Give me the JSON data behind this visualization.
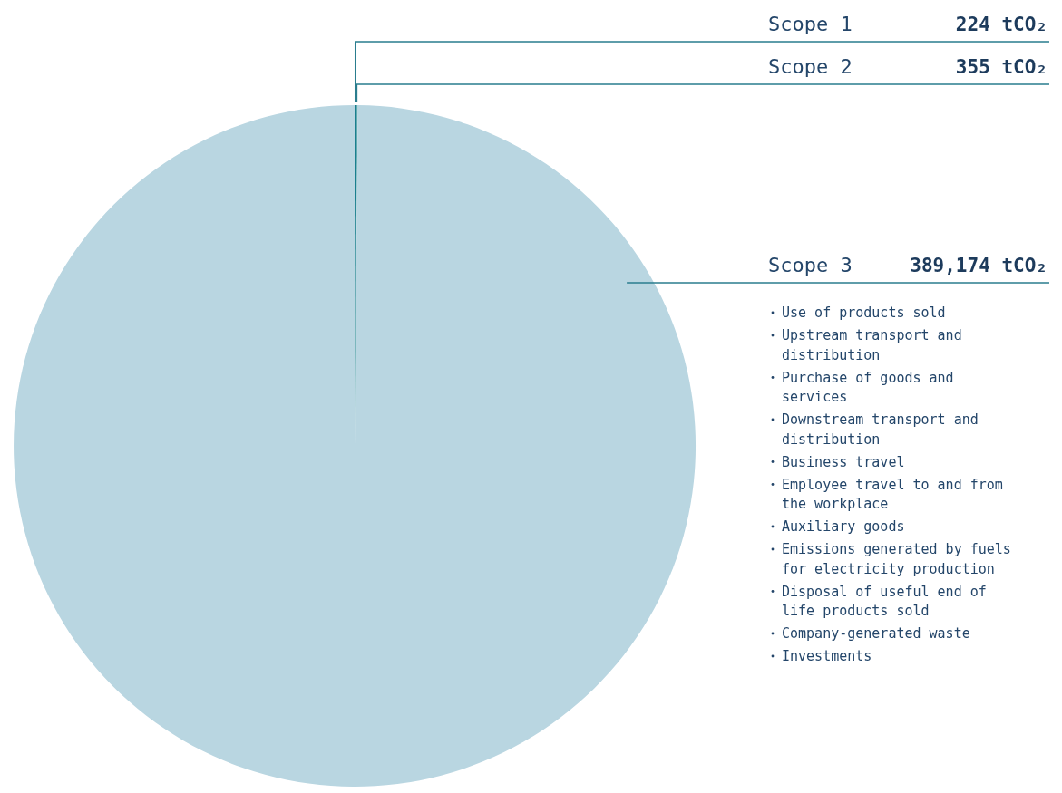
{
  "chart_data": {
    "type": "pie",
    "categories": [
      "Scope 1",
      "Scope 2",
      "Scope 3"
    ],
    "values": [
      224,
      355,
      389174
    ],
    "colors": [
      "#1a7f8e",
      "#62aab0",
      "#b9d6e1"
    ],
    "value_labels": [
      "224 tCO₂",
      "355 tCO₂",
      "389,174 tCO₂"
    ],
    "annotations": [
      "Use of products sold",
      "Upstream transport and distribution",
      "Purchase of goods and services",
      "Downstream transport and distribution",
      "Business travel",
      "Employee travel to and from the workplace",
      "Auxiliary goods",
      "Emissions generated by fuels for electricity production",
      "Disposal of useful end of life products sold",
      "Company-generated waste",
      "Investments"
    ]
  }
}
